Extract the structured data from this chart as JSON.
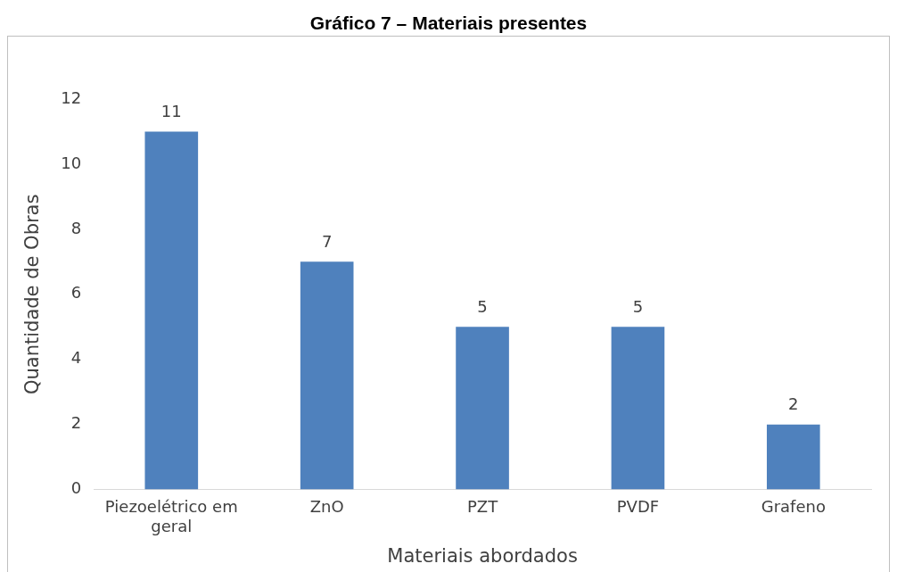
{
  "chart_data": {
    "type": "bar",
    "title": "Gráfico 7 – Materiais presentes",
    "xlabel": "Materiais abordados",
    "ylabel": "Quantidade de Obras",
    "categories": [
      "Piezoelétrico em geral",
      "ZnO",
      "PZT",
      "PVDF",
      "Grafeno"
    ],
    "values": [
      11,
      7,
      5,
      5,
      2
    ],
    "color": "#4f81bd",
    "ylim": [
      0,
      12
    ],
    "yticks": [
      0,
      2,
      4,
      6,
      8,
      10,
      12
    ],
    "grid": false,
    "legend": false,
    "data_labels": true
  }
}
